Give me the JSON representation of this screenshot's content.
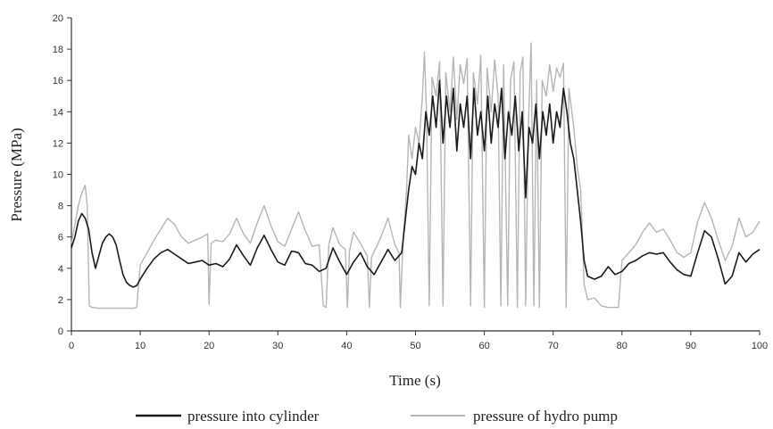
{
  "chart_data": {
    "type": "line",
    "xlabel": "Time (s)",
    "ylabel": "Pressure (MPa)",
    "xlim": [
      0,
      100
    ],
    "ylim": [
      0,
      20
    ],
    "xticks": [
      0,
      10,
      20,
      30,
      40,
      50,
      60,
      70,
      80,
      90,
      100
    ],
    "yticks": [
      0,
      2,
      4,
      6,
      8,
      10,
      12,
      14,
      16,
      18,
      20
    ],
    "grid": false,
    "legend_position": "bottom",
    "series": [
      {
        "name": "pressure into cylinder",
        "color": "#1a1a1a",
        "points": [
          [
            0,
            5.3
          ],
          [
            0.5,
            6
          ],
          [
            1,
            7
          ],
          [
            1.5,
            7.5
          ],
          [
            2,
            7.2
          ],
          [
            2.5,
            6.5
          ],
          [
            3,
            5
          ],
          [
            3.5,
            4
          ],
          [
            4,
            4.8
          ],
          [
            4.5,
            5.6
          ],
          [
            5,
            6
          ],
          [
            5.5,
            6.2
          ],
          [
            6,
            6
          ],
          [
            6.5,
            5.5
          ],
          [
            7,
            4.5
          ],
          [
            7.5,
            3.6
          ],
          [
            8,
            3.1
          ],
          [
            8.5,
            2.9
          ],
          [
            9,
            2.8
          ],
          [
            9.5,
            2.9
          ],
          [
            10,
            3.3
          ],
          [
            11,
            4
          ],
          [
            12,
            4.6
          ],
          [
            13,
            5
          ],
          [
            14,
            5.2
          ],
          [
            15,
            4.9
          ],
          [
            16,
            4.6
          ],
          [
            17,
            4.3
          ],
          [
            18,
            4.4
          ],
          [
            19,
            4.5
          ],
          [
            20,
            4.2
          ],
          [
            21,
            4.3
          ],
          [
            22,
            4.1
          ],
          [
            23,
            4.6
          ],
          [
            24,
            5.5
          ],
          [
            25,
            4.8
          ],
          [
            26,
            4.2
          ],
          [
            27,
            5.3
          ],
          [
            28,
            6.1
          ],
          [
            29,
            5.2
          ],
          [
            30,
            4.4
          ],
          [
            31,
            4.2
          ],
          [
            32,
            5.1
          ],
          [
            33,
            5
          ],
          [
            34,
            4.3
          ],
          [
            35,
            4.2
          ],
          [
            36,
            3.8
          ],
          [
            37,
            4
          ],
          [
            38,
            5.3
          ],
          [
            39,
            4.4
          ],
          [
            40,
            3.6
          ],
          [
            41,
            4.4
          ],
          [
            42,
            5
          ],
          [
            43,
            4.1
          ],
          [
            44,
            3.6
          ],
          [
            45,
            4.4
          ],
          [
            46,
            5.2
          ],
          [
            47,
            4.5
          ],
          [
            48,
            5
          ],
          [
            48.5,
            7
          ],
          [
            49,
            9
          ],
          [
            49.5,
            10.5
          ],
          [
            50,
            10
          ],
          [
            50.5,
            12
          ],
          [
            51,
            11
          ],
          [
            51.5,
            14
          ],
          [
            52,
            12.5
          ],
          [
            52.5,
            15
          ],
          [
            53,
            13
          ],
          [
            53.5,
            16
          ],
          [
            54,
            12
          ],
          [
            54.5,
            15
          ],
          [
            55,
            13
          ],
          [
            55.5,
            15.5
          ],
          [
            56,
            11.5
          ],
          [
            56.5,
            14.5
          ],
          [
            57,
            13
          ],
          [
            57.5,
            15
          ],
          [
            58,
            11
          ],
          [
            58.5,
            15.5
          ],
          [
            59,
            12.5
          ],
          [
            59.5,
            14
          ],
          [
            60,
            11.5
          ],
          [
            60.5,
            15
          ],
          [
            61,
            12
          ],
          [
            61.5,
            14.5
          ],
          [
            62,
            13
          ],
          [
            62.5,
            15.5
          ],
          [
            63,
            11
          ],
          [
            63.5,
            14
          ],
          [
            64,
            12.5
          ],
          [
            64.5,
            15
          ],
          [
            65,
            11.5
          ],
          [
            65.5,
            14
          ],
          [
            66,
            8.5
          ],
          [
            66.5,
            13
          ],
          [
            67,
            12
          ],
          [
            67.5,
            14.5
          ],
          [
            68,
            11
          ],
          [
            68.5,
            14
          ],
          [
            69,
            12.5
          ],
          [
            69.5,
            14.5
          ],
          [
            70,
            12
          ],
          [
            70.5,
            14
          ],
          [
            71,
            13
          ],
          [
            71.5,
            15.5
          ],
          [
            72,
            14
          ],
          [
            72.5,
            12
          ],
          [
            73,
            11
          ],
          [
            73.5,
            9
          ],
          [
            74,
            7
          ],
          [
            74.5,
            4.5
          ],
          [
            75,
            3.5
          ],
          [
            76,
            3.3
          ],
          [
            77,
            3.5
          ],
          [
            78,
            4.1
          ],
          [
            79,
            3.6
          ],
          [
            80,
            3.8
          ],
          [
            81,
            4.3
          ],
          [
            82,
            4.5
          ],
          [
            83,
            4.8
          ],
          [
            84,
            5
          ],
          [
            85,
            4.9
          ],
          [
            86,
            5
          ],
          [
            87,
            4.4
          ],
          [
            88,
            3.9
          ],
          [
            89,
            3.6
          ],
          [
            90,
            3.5
          ],
          [
            91,
            5
          ],
          [
            92,
            6.4
          ],
          [
            93,
            6
          ],
          [
            94,
            4.6
          ],
          [
            95,
            3
          ],
          [
            96,
            3.5
          ],
          [
            97,
            5
          ],
          [
            98,
            4.4
          ],
          [
            99,
            4.9
          ],
          [
            100,
            5.2
          ]
        ]
      },
      {
        "name": "pressure of hydro pump",
        "color": "#b5b5b5",
        "points": [
          [
            0,
            5.6
          ],
          [
            0.5,
            6.8
          ],
          [
            1,
            8
          ],
          [
            1.5,
            8.8
          ],
          [
            2,
            9.3
          ],
          [
            2.3,
            8
          ],
          [
            2.6,
            1.6
          ],
          [
            3,
            1.5
          ],
          [
            4,
            1.45
          ],
          [
            5,
            1.45
          ],
          [
            6,
            1.45
          ],
          [
            7,
            1.45
          ],
          [
            8,
            1.45
          ],
          [
            9,
            1.45
          ],
          [
            9.5,
            1.5
          ],
          [
            10,
            4.2
          ],
          [
            11,
            5
          ],
          [
            12,
            5.8
          ],
          [
            13,
            6.5
          ],
          [
            14,
            7.2
          ],
          [
            15,
            6.8
          ],
          [
            16,
            6
          ],
          [
            17,
            5.6
          ],
          [
            18,
            5.8
          ],
          [
            19,
            6
          ],
          [
            19.8,
            6.2
          ],
          [
            20,
            1.7
          ],
          [
            20.3,
            5.6
          ],
          [
            21,
            5.8
          ],
          [
            22,
            5.7
          ],
          [
            23,
            6.2
          ],
          [
            24,
            7.2
          ],
          [
            25,
            6.2
          ],
          [
            26,
            5.6
          ],
          [
            27,
            6.9
          ],
          [
            28,
            8
          ],
          [
            29,
            6.7
          ],
          [
            30,
            5.7
          ],
          [
            31,
            5.4
          ],
          [
            32,
            6.5
          ],
          [
            33,
            7.6
          ],
          [
            34,
            6.4
          ],
          [
            35,
            5.4
          ],
          [
            36,
            5.5
          ],
          [
            36.6,
            1.6
          ],
          [
            37,
            1.5
          ],
          [
            37.4,
            5.5
          ],
          [
            38,
            6.6
          ],
          [
            39,
            5.5
          ],
          [
            39.8,
            5.2
          ],
          [
            40.1,
            1.5
          ],
          [
            40.4,
            5.1
          ],
          [
            41,
            6.3
          ],
          [
            42,
            5.6
          ],
          [
            43,
            4.8
          ],
          [
            43.3,
            1.5
          ],
          [
            43.6,
            4.7
          ],
          [
            45,
            6
          ],
          [
            46,
            7.2
          ],
          [
            47,
            5.5
          ],
          [
            47.6,
            5
          ],
          [
            47.8,
            1.5
          ],
          [
            48.2,
            5.8
          ],
          [
            48.7,
            9
          ],
          [
            49,
            12.5
          ],
          [
            49.5,
            11
          ],
          [
            50,
            13
          ],
          [
            50.5,
            12
          ],
          [
            51,
            15
          ],
          [
            51.3,
            17.8
          ],
          [
            51.6,
            14
          ],
          [
            52,
            1.6
          ],
          [
            52.4,
            16.2
          ],
          [
            53,
            15
          ],
          [
            53.5,
            17.2
          ],
          [
            54,
            1.6
          ],
          [
            54.4,
            16.5
          ],
          [
            55,
            14
          ],
          [
            55.5,
            17.5
          ],
          [
            56,
            13.5
          ],
          [
            56.5,
            17
          ],
          [
            57,
            15.8
          ],
          [
            57.5,
            17.4
          ],
          [
            58,
            1.6
          ],
          [
            58.4,
            16.5
          ],
          [
            59,
            14.5
          ],
          [
            59.5,
            17.6
          ],
          [
            60,
            1.5
          ],
          [
            60.4,
            16.8
          ],
          [
            61,
            14
          ],
          [
            61.5,
            17.3
          ],
          [
            62,
            15
          ],
          [
            62.4,
            1.6
          ],
          [
            62.8,
            17
          ],
          [
            63.4,
            1.6
          ],
          [
            63.8,
            16
          ],
          [
            64.3,
            17.2
          ],
          [
            64.8,
            1.5
          ],
          [
            65.2,
            16.5
          ],
          [
            65.6,
            17.5
          ],
          [
            66,
            1.6
          ],
          [
            66.4,
            13
          ],
          [
            66.8,
            18.4
          ],
          [
            67.2,
            1.6
          ],
          [
            67.6,
            16
          ],
          [
            68,
            1.5
          ],
          [
            68.4,
            16
          ],
          [
            69,
            15
          ],
          [
            69.5,
            17
          ],
          [
            70,
            15.3
          ],
          [
            70.5,
            16.8
          ],
          [
            71,
            16.2
          ],
          [
            71.5,
            17.1
          ],
          [
            71.9,
            1.5
          ],
          [
            72.3,
            15.5
          ],
          [
            73,
            13
          ],
          [
            73.5,
            10.5
          ],
          [
            74,
            9
          ],
          [
            74.5,
            3
          ],
          [
            75,
            2
          ],
          [
            76,
            2.1
          ],
          [
            77,
            1.6
          ],
          [
            78,
            1.5
          ],
          [
            79,
            1.5
          ],
          [
            79.5,
            1.5
          ],
          [
            80,
            4.5
          ],
          [
            81,
            5
          ],
          [
            82,
            5.5
          ],
          [
            83,
            6.3
          ],
          [
            84,
            6.9
          ],
          [
            85,
            6.3
          ],
          [
            86,
            6.5
          ],
          [
            87,
            5.8
          ],
          [
            88,
            5
          ],
          [
            89,
            4.7
          ],
          [
            90,
            5
          ],
          [
            91,
            7
          ],
          [
            92,
            8.2
          ],
          [
            93,
            7.2
          ],
          [
            94,
            5.8
          ],
          [
            95,
            4.5
          ],
          [
            96,
            5.4
          ],
          [
            97,
            7.2
          ],
          [
            98,
            6
          ],
          [
            99,
            6.3
          ],
          [
            100,
            7
          ]
        ]
      }
    ]
  }
}
